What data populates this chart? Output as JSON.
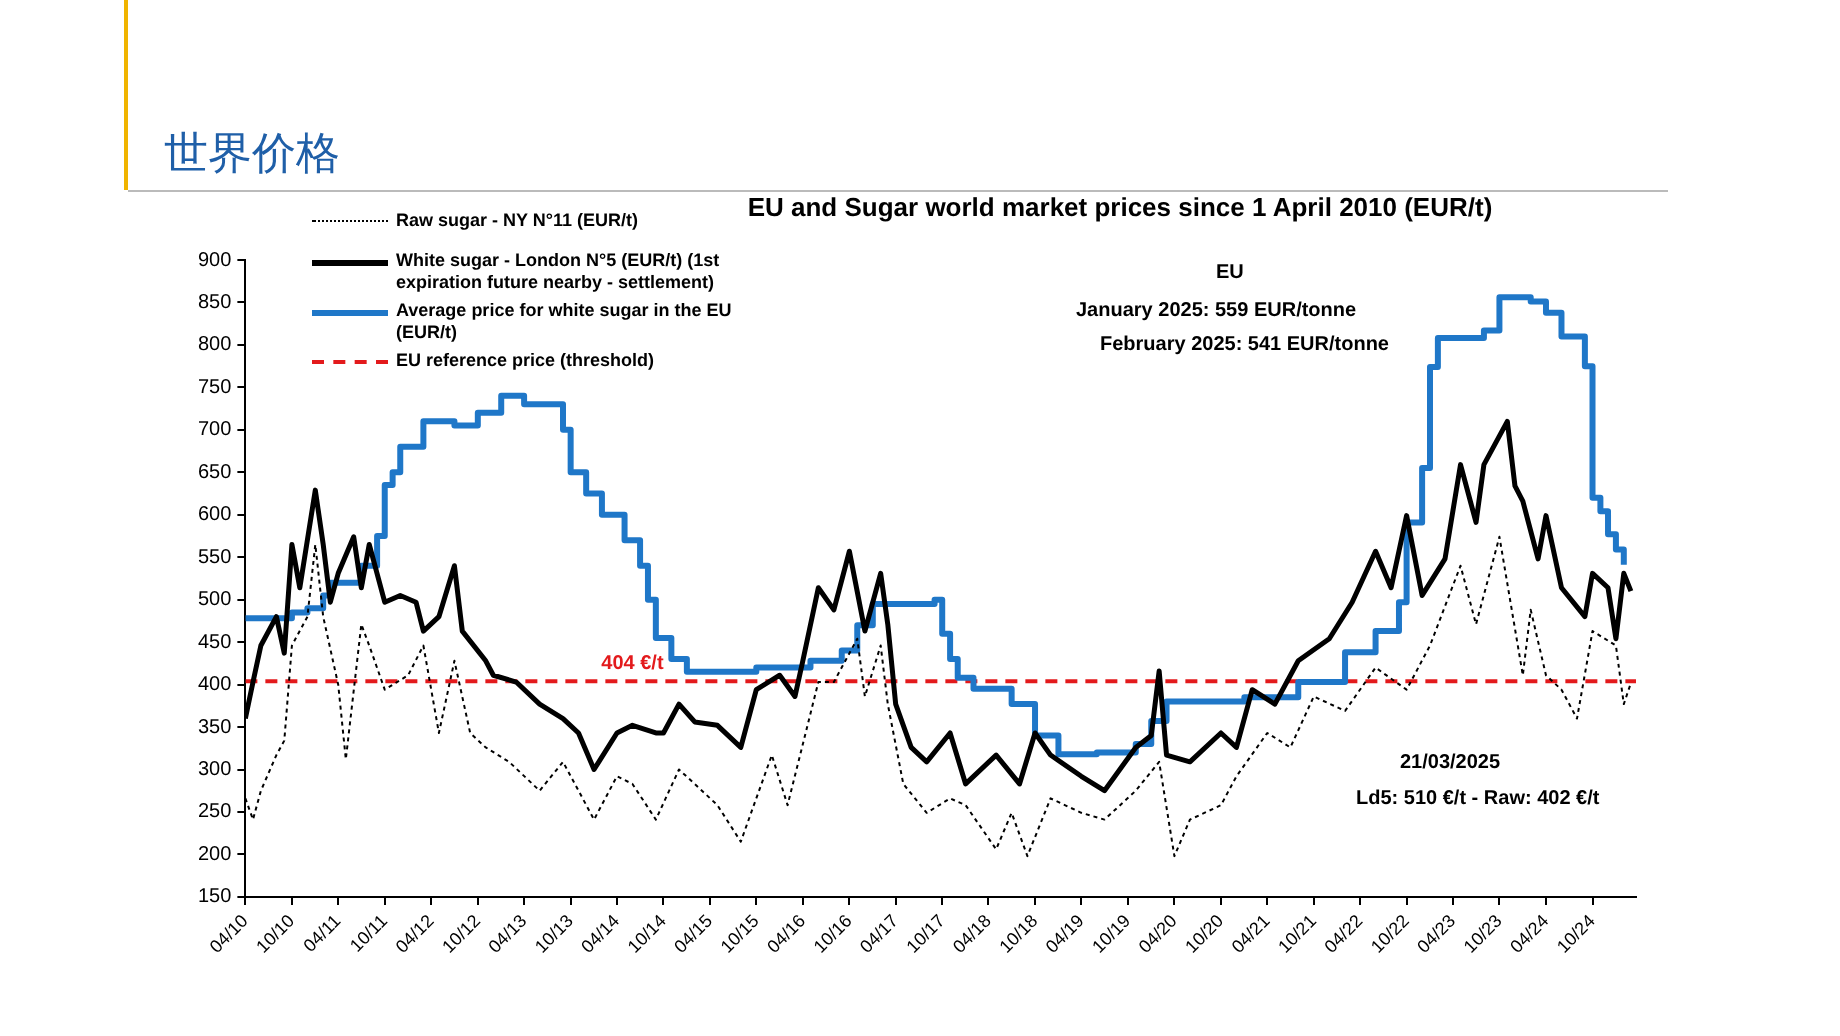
{
  "chart_data": {
    "type": "line",
    "title": "世界价格",
    "subtitle": "EU and Sugar world market prices since 1 April 2010 (EUR/t)",
    "xlim": [
      "2010-04-01",
      "2025-03-21"
    ],
    "xticks": [
      {
        "value": "2010-04",
        "label": "04/10"
      },
      {
        "value": "2010-10",
        "label": "10/10"
      },
      {
        "value": "2011-04",
        "label": "04/11"
      },
      {
        "value": "2011-10",
        "label": "10/11"
      },
      {
        "value": "2012-04",
        "label": "04/12"
      },
      {
        "value": "2012-10",
        "label": "10/12"
      },
      {
        "value": "2013-04",
        "label": "04/13"
      },
      {
        "value": "2013-10",
        "label": "10/13"
      },
      {
        "value": "2014-04",
        "label": "04/14"
      },
      {
        "value": "2014-10",
        "label": "10/14"
      },
      {
        "value": "2015-04",
        "label": "04/15"
      },
      {
        "value": "2015-10",
        "label": "10/15"
      },
      {
        "value": "2016-04",
        "label": "04/16"
      },
      {
        "value": "2016-10",
        "label": "10/16"
      },
      {
        "value": "2017-04",
        "label": "04/17"
      },
      {
        "value": "2017-10",
        "label": "10/17"
      },
      {
        "value": "2018-04",
        "label": "04/18"
      },
      {
        "value": "2018-10",
        "label": "10/18"
      },
      {
        "value": "2019-04",
        "label": "04/19"
      },
      {
        "value": "2019-10",
        "label": "10/19"
      },
      {
        "value": "2020-04",
        "label": "04/20"
      },
      {
        "value": "2020-10",
        "label": "10/20"
      },
      {
        "value": "2021-04",
        "label": "04/21"
      },
      {
        "value": "2021-10",
        "label": "10/21"
      },
      {
        "value": "2022-04",
        "label": "04/22"
      },
      {
        "value": "2022-10",
        "label": "10/22"
      },
      {
        "value": "2023-04",
        "label": "04/23"
      },
      {
        "value": "2023-10",
        "label": "10/23"
      },
      {
        "value": "2024-04",
        "label": "04/24"
      },
      {
        "value": "2024-10",
        "label": "10/24"
      }
    ],
    "ylim": [
      150,
      900
    ],
    "yticks": [
      150,
      200,
      250,
      300,
      350,
      400,
      450,
      500,
      550,
      600,
      650,
      700,
      750,
      800,
      850,
      900
    ],
    "grid": false,
    "legend": "top left",
    "marker": "none",
    "series": [
      {
        "name": "Raw sugar - NY N°11 (EUR/t)",
        "color": "#000000",
        "line_style": "dotted",
        "x": [
          "2010-04",
          "2010-05",
          "2010-06",
          "2010-08",
          "2010-09",
          "2010-10",
          "2010-12",
          "2011-01",
          "2011-02",
          "2011-04",
          "2011-05",
          "2011-07",
          "2011-08",
          "2011-10",
          "2012-01",
          "2012-03",
          "2012-05",
          "2012-07",
          "2012-09",
          "2012-11",
          "2013-02",
          "2013-06",
          "2013-09",
          "2014-01",
          "2014-04",
          "2014-06",
          "2014-09",
          "2014-12",
          "2015-02",
          "2015-05",
          "2015-08",
          "2015-12",
          "2016-02",
          "2016-06",
          "2016-08",
          "2016-11",
          "2016-12",
          "2017-02",
          "2017-03",
          "2017-05",
          "2017-08",
          "2017-11",
          "2018-01",
          "2018-05",
          "2018-07",
          "2018-09",
          "2018-12",
          "2019-04",
          "2019-07",
          "2019-11",
          "2020-02",
          "2020-04",
          "2020-06",
          "2020-10",
          "2020-12",
          "2021-04",
          "2021-07",
          "2021-10",
          "2022-02",
          "2022-06",
          "2022-10",
          "2023-01",
          "2023-05",
          "2023-07",
          "2023-10",
          "2024-01",
          "2024-02",
          "2024-04",
          "2024-06",
          "2024-08",
          "2024-10",
          "2025-01",
          "2025-02",
          "2025-03"
        ],
        "values": [
          266,
          241,
          275,
          317,
          334,
          446,
          480,
          565,
          480,
          400,
          312,
          471,
          446,
          394,
          411,
          446,
          343,
          428,
          343,
          326,
          309,
          275,
          309,
          241,
          292,
          283,
          241,
          300,
          283,
          258,
          215,
          317,
          258,
          403,
          403,
          454,
          386,
          446,
          377,
          283,
          249,
          266,
          258,
          206,
          249,
          198,
          266,
          249,
          241,
          275,
          309,
          198,
          241,
          258,
          292,
          343,
          326,
          386,
          369,
          420,
          394,
          446,
          540,
          471,
          574,
          411,
          488,
          411,
          394,
          360,
          463,
          446,
          377,
          402
        ]
      },
      {
        "name": "White sugar - London N°5 (EUR/t) (1st expiration future nearby - settlement)",
        "color": "#000000",
        "line_style": "solid",
        "x": [
          "2010-04",
          "2010-05",
          "2010-06",
          "2010-08",
          "2010-09",
          "2010-10",
          "2010-11",
          "2011-01",
          "2011-02",
          "2011-03",
          "2011-04",
          "2011-06",
          "2011-07",
          "2011-08",
          "2011-10",
          "2011-12",
          "2012-02",
          "2012-03",
          "2012-05",
          "2012-07",
          "2012-08",
          "2012-11",
          "2012-12",
          "2013-03",
          "2013-06",
          "2013-09",
          "2013-11",
          "2014-01",
          "2014-04",
          "2014-06",
          "2014-09",
          "2014-10",
          "2014-12",
          "2015-02",
          "2015-05",
          "2015-08",
          "2015-10",
          "2016-01",
          "2016-03",
          "2016-04",
          "2016-06",
          "2016-08",
          "2016-10",
          "2016-12",
          "2017-02",
          "2017-03",
          "2017-04",
          "2017-06",
          "2017-08",
          "2017-11",
          "2018-01",
          "2018-05",
          "2018-08",
          "2018-10",
          "2018-12",
          "2019-04",
          "2019-07",
          "2019-11",
          "2020-01",
          "2020-02",
          "2020-03",
          "2020-06",
          "2020-10",
          "2020-12",
          "2021-02",
          "2021-05",
          "2021-08",
          "2021-12",
          "2022-03",
          "2022-06",
          "2022-08",
          "2022-10",
          "2022-12",
          "2023-03",
          "2023-05",
          "2023-07",
          "2023-08",
          "2023-11",
          "2023-12",
          "2024-01",
          "2024-03",
          "2024-04",
          "2024-06",
          "2024-09",
          "2024-10",
          "2024-12",
          "2025-01",
          "2025-02",
          "2025-03"
        ],
        "values": [
          360,
          403,
          446,
          480,
          437,
          565,
          514,
          629,
          565,
          497,
          531,
          574,
          514,
          565,
          497,
          505,
          497,
          463,
          480,
          540,
          463,
          428,
          411,
          403,
          377,
          360,
          343,
          300,
          343,
          352,
          343,
          343,
          377,
          356,
          352,
          326,
          394,
          411,
          386,
          428,
          514,
          488,
          557,
          463,
          531,
          471,
          377,
          326,
          309,
          343,
          283,
          317,
          283,
          343,
          317,
          292,
          275,
          326,
          340,
          416,
          317,
          309,
          343,
          326,
          394,
          377,
          428,
          454,
          497,
          557,
          514,
          599,
          505,
          548,
          659,
          591,
          659,
          710,
          634,
          616,
          548,
          599,
          514,
          480,
          531,
          514,
          454,
          531,
          510
        ]
      },
      {
        "name": "Average price for white sugar in the EU (EUR/t)",
        "type": "step",
        "color": "#1f77c8",
        "line_style": "solid",
        "x": [
          "2010-04",
          "2010-08",
          "2010-10",
          "2010-12",
          "2011-02",
          "2011-03",
          "2011-07",
          "2011-09",
          "2011-10",
          "2011-11",
          "2011-12",
          "2012-03",
          "2012-07",
          "2012-10",
          "2013-01",
          "2013-04",
          "2013-09",
          "2013-10",
          "2013-12",
          "2014-02",
          "2014-05",
          "2014-07",
          "2014-08",
          "2014-09",
          "2014-11",
          "2015-01",
          "2015-10",
          "2016-05",
          "2016-09",
          "2016-11",
          "2017-01",
          "2017-09",
          "2017-10",
          "2017-11",
          "2017-12",
          "2018-02",
          "2018-07",
          "2018-10",
          "2019-01",
          "2019-06",
          "2019-11",
          "2020-01",
          "2020-03",
          "2021-01",
          "2021-08",
          "2022-02",
          "2022-06",
          "2022-09",
          "2022-10",
          "2022-12",
          "2023-01",
          "2023-02",
          "2023-08",
          "2023-10",
          "2024-02",
          "2024-04",
          "2024-06",
          "2024-09",
          "2024-10",
          "2024-11",
          "2024-12",
          "2025-01",
          "2025-02"
        ],
        "values": [
          478,
          478,
          485,
          490,
          505,
          520,
          540,
          575,
          635,
          650,
          680,
          710,
          705,
          720,
          740,
          730,
          700,
          650,
          625,
          600,
          570,
          540,
          500,
          455,
          430,
          415,
          420,
          428,
          440,
          470,
          495,
          500,
          460,
          430,
          408,
          395,
          377,
          340,
          318,
          320,
          330,
          357,
          380,
          385,
          403,
          438,
          463,
          497,
          591,
          655,
          774,
          808,
          817,
          856,
          851,
          838,
          810,
          775,
          620,
          604,
          577,
          559,
          541
        ]
      },
      {
        "name": "EU reference price  (threshold)",
        "color": "#e31a1c",
        "line_style": "dashed",
        "x": [
          "2010-04-01",
          "2025-03-21"
        ],
        "values": [
          404,
          404
        ]
      }
    ],
    "annotations": [
      {
        "text": "404 €/t",
        "x": "2014-06",
        "y": 404
      },
      "EU",
      "January 2025: 559 EUR/tonne",
      "February 2025: 541 EUR/tonne",
      "21/03/2025",
      "Ld5: 510 €/t - Raw: 402 €/t"
    ]
  }
}
